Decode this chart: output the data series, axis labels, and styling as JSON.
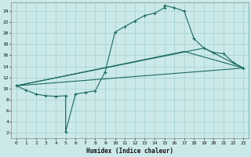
{
  "bg_color": "#cce9e9",
  "grid_color": "#aad4d4",
  "line_color": "#1a6b60",
  "xlabel": "Humidex (Indice chaleur)",
  "xlim": [
    -0.5,
    23.5
  ],
  "ylim": [
    1,
    25.5
  ],
  "xticks": [
    0,
    1,
    2,
    3,
    4,
    5,
    6,
    7,
    8,
    9,
    10,
    11,
    12,
    13,
    14,
    15,
    16,
    17,
    18,
    19,
    20,
    21,
    22,
    23
  ],
  "yticks": [
    2,
    4,
    6,
    8,
    10,
    12,
    14,
    16,
    18,
    20,
    22,
    24
  ],
  "curve1_x": [
    0,
    1,
    2,
    3,
    4,
    5,
    5,
    6,
    7,
    8,
    9,
    10,
    11,
    12,
    13,
    14,
    15,
    15,
    16,
    17,
    18,
    19,
    20,
    21,
    22,
    23
  ],
  "curve1_y": [
    10.5,
    9.7,
    9.0,
    8.7,
    8.6,
    8.7,
    2.2,
    9.0,
    9.3,
    9.6,
    13.0,
    20.2,
    21.2,
    22.2,
    23.2,
    23.6,
    24.6,
    25.0,
    24.6,
    24.0,
    19.0,
    17.3,
    16.5,
    16.3,
    14.7,
    13.7
  ],
  "line2_x": [
    0,
    23
  ],
  "line2_y": [
    10.5,
    13.7
  ],
  "line3_x": [
    0,
    19,
    23
  ],
  "line3_y": [
    10.5,
    17.3,
    13.7
  ],
  "line4_x": [
    0,
    17,
    23
  ],
  "line4_y": [
    10.5,
    16.7,
    13.7
  ]
}
